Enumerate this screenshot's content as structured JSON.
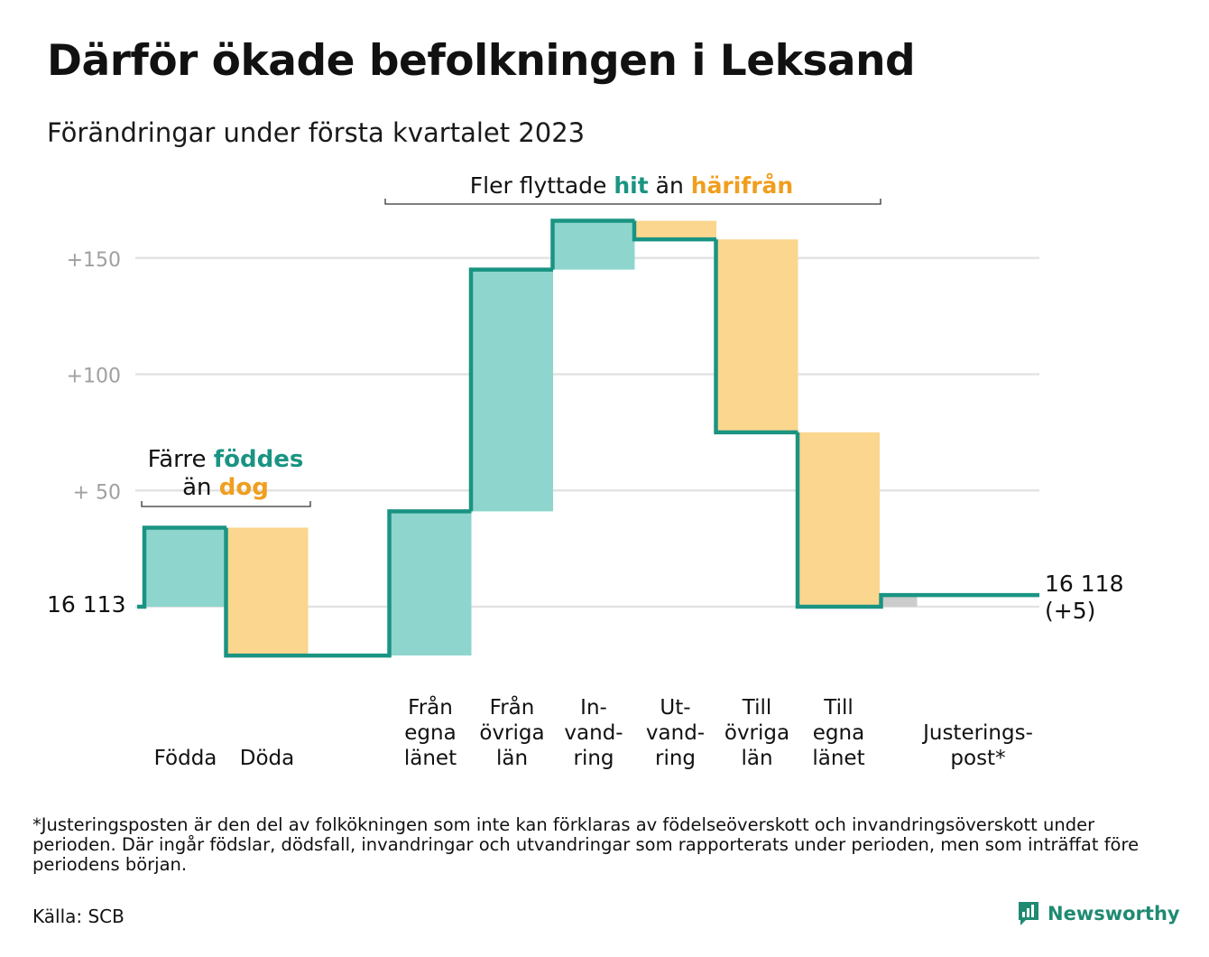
{
  "title": "Därför ökade befolkningen i Leksand",
  "subtitle": "Förändringar under första kvartalet 2023",
  "colors": {
    "increase": "#8ed6cd",
    "decrease": "#fad68f",
    "adjustment": "#cccccc",
    "line": "#1a9482",
    "hit": "#1a9482",
    "away": "#f09e1e",
    "grid": "#e3e3e3",
    "tick_label": "#a0a0a0"
  },
  "annotations": {
    "births": {
      "line1": "Färre",
      "line1_highlight": "föddes",
      "line2": "än",
      "line2_highlight": "dog"
    },
    "migration": {
      "prefix": "Fler flyttade",
      "highlight1": "hit",
      "middle": "än",
      "highlight2": "härifrån"
    }
  },
  "start_label": "16 113",
  "end_label": [
    "16 118",
    "(+5)"
  ],
  "footnote": "*Justeringsposten är den del av folkökningen som inte kan förklaras av födelseöverskott och invandringsöverskott under perioden. Där ingår födslar, dödsfall, invandringar och utvandringar som rapporterats under perioden, men som inträffat före periodens början.",
  "source": "Källa: SCB",
  "brand": "Newsworthy",
  "chart_data": {
    "type": "waterfall",
    "start_value": 16113,
    "end_value": 16118,
    "y_axis": {
      "range": [
        -20,
        170
      ],
      "ticks": [
        50,
        100,
        150
      ],
      "tick_labels": [
        "+ 50",
        "+100",
        "+150"
      ],
      "grid": true
    },
    "steps": [
      {
        "label": [
          "Födda"
        ],
        "change": 34,
        "kind": "increase"
      },
      {
        "label": [
          "Döda"
        ],
        "change": -55,
        "kind": "decrease"
      },
      {
        "label": [
          "Från",
          "egna",
          "länet"
        ],
        "change": 62,
        "kind": "increase"
      },
      {
        "label": [
          "Från",
          "övriga",
          "län"
        ],
        "change": 104,
        "kind": "increase"
      },
      {
        "label": [
          "In-",
          "vand-",
          "ring"
        ],
        "change": 21,
        "kind": "increase"
      },
      {
        "label": [
          "Ut-",
          "vand-",
          "ring"
        ],
        "change": -8,
        "kind": "decrease"
      },
      {
        "label": [
          "Till",
          "övriga",
          "län"
        ],
        "change": -83,
        "kind": "decrease"
      },
      {
        "label": [
          "Till",
          "egna",
          "länet"
        ],
        "change": -75,
        "kind": "decrease"
      },
      {
        "label": [
          "Justerings-",
          "post*"
        ],
        "change": 5,
        "kind": "adjustment"
      }
    ]
  }
}
